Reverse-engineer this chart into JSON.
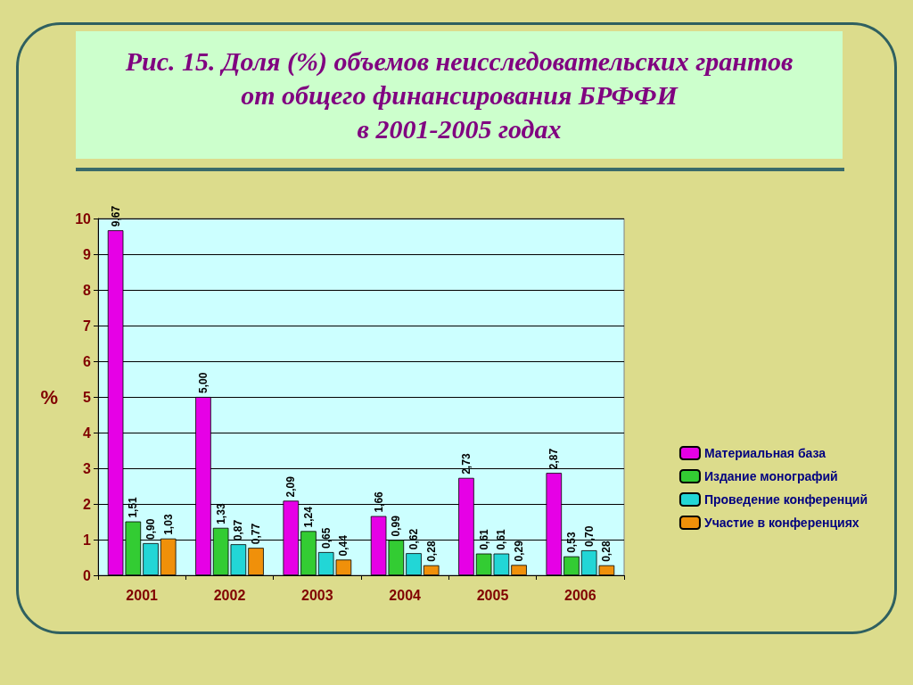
{
  "chart_data": {
    "type": "bar",
    "title": "Рис. 15. Доля (%) объемов неисследовательских грантов\nот общего финансирования БРФФИ\nв 2001-2005 годах",
    "ylabel": "%",
    "categories": [
      "2001",
      "2002",
      "2003",
      "2004",
      "2005",
      "2006"
    ],
    "series": [
      {
        "name": "Материальная база",
        "color": "#e600e6",
        "values": [
          9.67,
          5.0,
          2.09,
          1.66,
          2.73,
          2.87
        ],
        "value_labels": [
          "9,67",
          "5,00",
          "2,09",
          "1,66",
          "2,73",
          "2,87"
        ]
      },
      {
        "name": "Издание монографий",
        "color": "#33cc33",
        "values": [
          1.51,
          1.33,
          1.24,
          0.99,
          0.61,
          0.53
        ],
        "value_labels": [
          "1,51",
          "1,33",
          "1,24",
          "0,99",
          "0,61",
          "0,53"
        ]
      },
      {
        "name": "Проведение конференций",
        "color": "#22d6d6",
        "values": [
          0.9,
          0.87,
          0.65,
          0.62,
          0.61,
          0.7
        ],
        "value_labels": [
          "0,90",
          "0,87",
          "0,65",
          "0,62",
          "0,61",
          "0,70"
        ]
      },
      {
        "name": "Участие в конференциях",
        "color": "#f0900a",
        "values": [
          1.03,
          0.77,
          0.44,
          0.28,
          0.29,
          0.28
        ],
        "value_labels": [
          "1,03",
          "0,77",
          "0,44",
          "0,28",
          "0,29",
          "0,28"
        ]
      }
    ],
    "ylim": [
      0,
      10
    ],
    "yticks": [
      0,
      1,
      2,
      3,
      4,
      5,
      6,
      7,
      8,
      9,
      10
    ],
    "grid": "y",
    "legend": "right"
  }
}
